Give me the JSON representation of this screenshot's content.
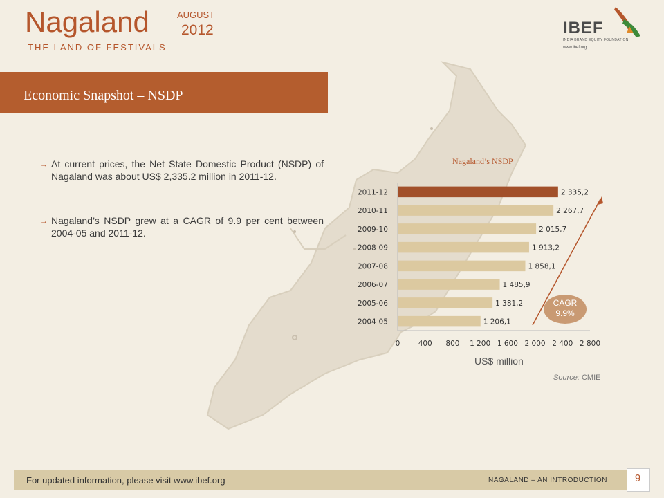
{
  "header": {
    "title": "Nagaland",
    "subtitle": "THE LAND OF FESTIVALS",
    "month": "AUGUST",
    "year": "2012"
  },
  "logo": {
    "name": "IBEF",
    "subtitle": "INDIA BRAND EQUITY FOUNDATION",
    "url": "www.ibef.org"
  },
  "section": {
    "title": "Economic Snapshot – NSDP"
  },
  "bullets": [
    {
      "marker": "→",
      "text": "At current prices, the Net State Domestic Product (NSDP) of Nagaland was about US$ 2,335.2 million in 2011-12."
    },
    {
      "marker": "→",
      "text": "Nagaland’s NSDP grew at a CAGR of 9.9 per cent between 2004-05 and 2011-12."
    }
  ],
  "chart_data": {
    "type": "bar",
    "orientation": "horizontal",
    "title": "Nagaland’s NSDP",
    "xlabel": "US$ million",
    "categories": [
      "2011-12",
      "2010-11",
      "2009-10",
      "2008-09",
      "2007-08",
      "2006-07",
      "2005-06",
      "2004-05"
    ],
    "values": [
      2335.2,
      2267.7,
      2015.7,
      1913.2,
      1858.1,
      1485.9,
      1381.2,
      1206.1
    ],
    "value_labels": [
      "2 335,2",
      "2 267,7",
      "2 015,7",
      "1 913,2",
      "1 858,1",
      "1 485,9",
      "1 381,2",
      "1 206,1"
    ],
    "xlim": [
      0,
      2800
    ],
    "xticks": [
      0,
      400,
      800,
      1200,
      1600,
      2000,
      2400,
      2800
    ],
    "xtick_labels": [
      "0",
      "400",
      "800",
      "1 200",
      "1 600",
      "2 000",
      "2 400",
      "2 800"
    ],
    "grid": false,
    "colors": {
      "highlight": "#a2502a",
      "bar": "#dcc9a0"
    },
    "annotation": {
      "label": "CAGR",
      "value": "9.9%"
    }
  },
  "source": {
    "label": "Source:",
    "value": "CMIE"
  },
  "footer": {
    "text": "For updated information, please visit www.ibef.org",
    "right": "NAGALAND – AN INTRODUCTION",
    "page": "9"
  },
  "colors": {
    "accent": "#b5562c",
    "banner": "#b45d2e",
    "background": "#f3eee3"
  }
}
